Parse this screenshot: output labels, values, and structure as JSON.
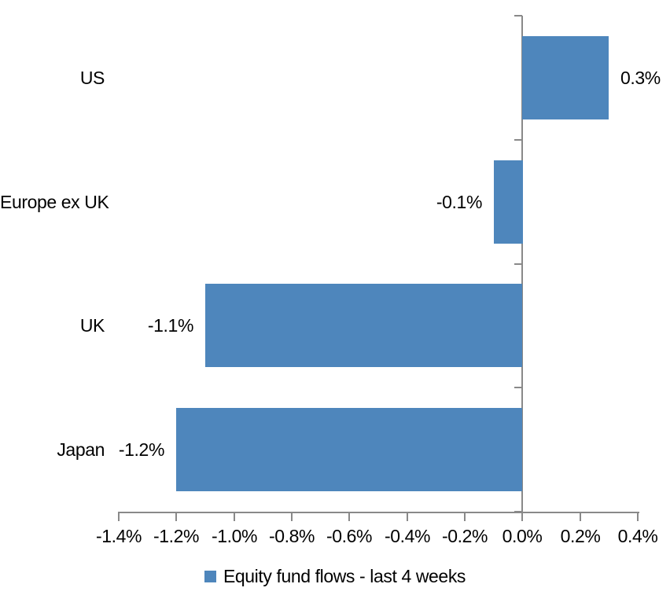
{
  "chart_data": {
    "type": "bar",
    "orientation": "horizontal",
    "title": "",
    "categories": [
      "US",
      "Europe ex UK",
      "UK",
      "Japan"
    ],
    "series": [
      {
        "name": "Equity fund flows - last 4 weeks",
        "values": [
          0.3,
          -0.1,
          -1.1,
          -1.2
        ],
        "value_labels": [
          "0.3%",
          "-0.1%",
          "-1.1%",
          "-1.2%"
        ]
      }
    ],
    "x_axis": {
      "min": -1.4,
      "max": 0.4,
      "step": 0.2,
      "tick_labels": [
        "-1.4%",
        "-1.2%",
        "-1.0%",
        "-0.8%",
        "-0.6%",
        "-0.4%",
        "-0.2%",
        "0.0%",
        "0.2%",
        "0.4%"
      ],
      "unit": "%"
    },
    "legend_position": "bottom",
    "grid": false,
    "data_label_position": "outside-end"
  },
  "colors": {
    "bar": "#4E86BC",
    "axis_line": "#898989",
    "text": "#000000",
    "background": "#FFFFFF"
  }
}
